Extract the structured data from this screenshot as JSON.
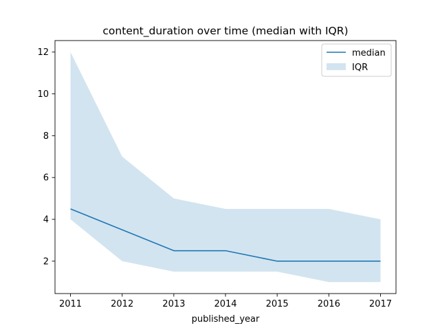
{
  "chart_data": {
    "type": "line",
    "title": "content_duration over time (median with IQR)",
    "xlabel": "published_year",
    "ylabel": "",
    "x": [
      2011,
      2012,
      2013,
      2014,
      2015,
      2016,
      2017
    ],
    "series": [
      {
        "name": "median",
        "kind": "line",
        "color": "#1f77b4",
        "values": [
          4.5,
          3.5,
          2.5,
          2.5,
          2.0,
          2.0,
          2.0
        ]
      },
      {
        "name": "IQR",
        "kind": "band",
        "color": "#1f77b4",
        "opacity": 0.2,
        "lower": [
          4.0,
          2.0,
          1.5,
          1.5,
          1.5,
          1.0,
          1.0
        ],
        "upper": [
          12.0,
          7.0,
          5.0,
          4.5,
          4.5,
          4.5,
          4.0
        ]
      }
    ],
    "xticks": [
      "2011",
      "2012",
      "2013",
      "2014",
      "2015",
      "2016",
      "2017"
    ],
    "yticks": [
      "2",
      "4",
      "6",
      "8",
      "10",
      "12"
    ],
    "xlim": [
      2010.7,
      2017.3
    ],
    "ylim": [
      0.45,
      12.55
    ],
    "grid": false,
    "legend_position": "top-right"
  }
}
